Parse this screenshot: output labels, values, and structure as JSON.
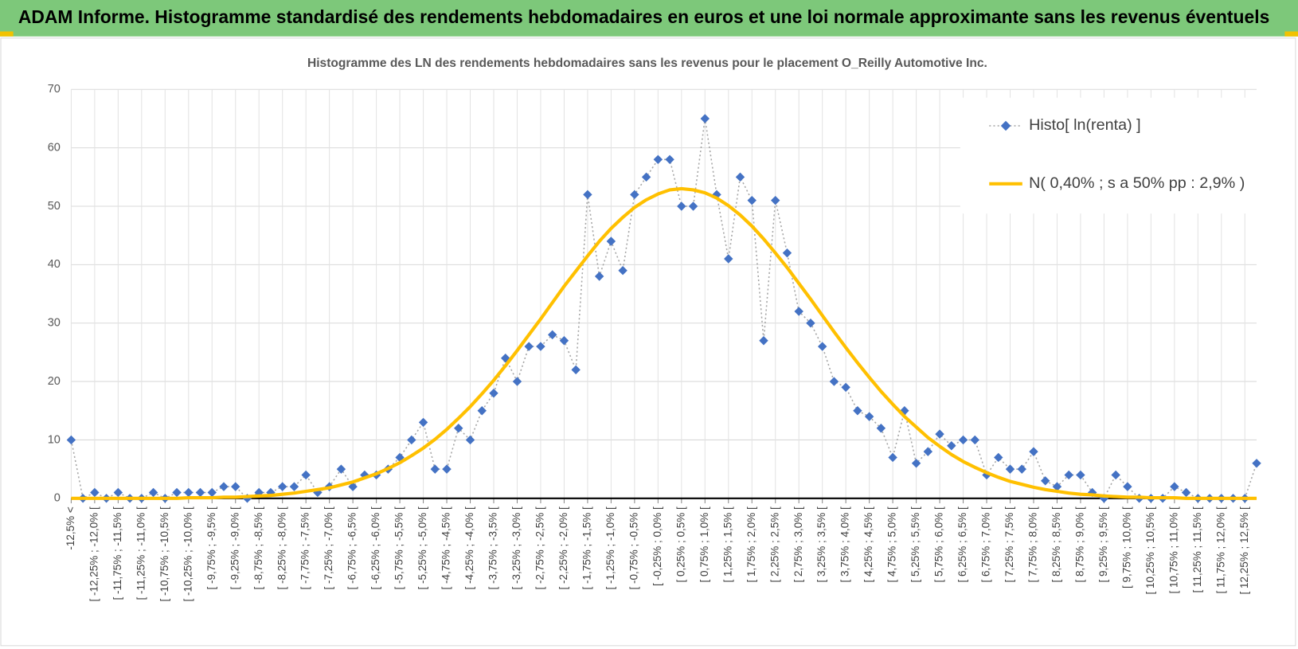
{
  "header": {
    "title": "ADAM Informe. Histogramme standardisé des rendements hebdomadaires en euros et une loi normale approximante sans les revenus éventuels"
  },
  "chart_data": {
    "type": "line",
    "title": "Histogramme  des LN des rendements  hebdomadaires sans les  revenus pour le placement O_Reilly  Automotive Inc.",
    "categories": [
      "-12,5% <",
      null,
      "[ -12,25% ; -12,0% [",
      null,
      "[ -11,75% ; -11,5% [",
      null,
      "[ -11,25% ; -11,0% [",
      null,
      "[ -10,75% ; -10,5% [",
      null,
      "[ -10,25% ; -10,0% [",
      null,
      "[ -9,75% ; -9,5% [",
      null,
      "[ -9,25% ; -9,0% [",
      null,
      "[ -8,75% ; -8,5% [",
      null,
      "[ -8,25% ; -8,0% [",
      null,
      "[ -7,75% ; -7,5% [",
      null,
      "[ -7,25% ; -7,0% [",
      null,
      "[ -6,75% ; -6,5% [",
      null,
      "[ -6,25% ; -6,0% [",
      null,
      "[ -5,75% ; -5,5% [",
      null,
      "[ -5,25% ; -5,0% [",
      null,
      "[ -4,75% ; -4,5% [",
      null,
      "[ -4,25% ; -4,0% [",
      null,
      "[ -3,75% ; -3,5% [",
      null,
      "[ -3,25% ; -3,0% [",
      null,
      "[ -2,75% ; -2,5% [",
      null,
      "[ -2,25% ; -2,0% [",
      null,
      "[ -1,75% ; -1,5% [",
      null,
      "[ -1,25% ; -1,0% [",
      null,
      "[ -0,75% ; -0,5% [",
      null,
      "[ -0,25% ; 0,0% [",
      null,
      "[ 0,25% ; 0,5% [",
      null,
      "[ 0,75% ; 1,0% [",
      null,
      "[ 1,25% ; 1,5% [",
      null,
      "[ 1,75% ; 2,0% [",
      null,
      "[ 2,25% ; 2,5% [",
      null,
      "[ 2,75% ; 3,0% [",
      null,
      "[ 3,25% ; 3,5% [",
      null,
      "[ 3,75% ; 4,0% [",
      null,
      "[ 4,25% ; 4,5% [",
      null,
      "[ 4,75% ; 5,0% [",
      null,
      "[ 5,25% ; 5,5% [",
      null,
      "[ 5,75% ; 6,0% [",
      null,
      "[ 6,25% ; 6,5% [",
      null,
      "[ 6,75% ; 7,0% [",
      null,
      "[ 7,25% ; 7,5% [",
      null,
      "[ 7,75% ; 8,0% [",
      null,
      "[ 8,25% ; 8,5% [",
      null,
      "[ 8,75% ; 9,0% [",
      null,
      "[ 9,25% ; 9,5% [",
      null,
      "[ 9,75% ; 10,0% [",
      null,
      "[ 10,25% ; 10,5% [",
      null,
      "[ 10,75% ; 11,0% [",
      null,
      "[ 11,25% ; 11,5% [",
      null,
      "[ 11,75% ; 12,0% [",
      null,
      "[ 12,25% ; 12,5% [",
      null
    ],
    "series": [
      {
        "name": "Histo[ ln(renta) ]",
        "color": "#4472c4",
        "values": [
          10,
          0,
          1,
          0,
          1,
          0,
          0,
          1,
          0,
          1,
          1,
          1,
          1,
          2,
          2,
          0,
          1,
          1,
          2,
          2,
          4,
          1,
          2,
          5,
          2,
          4,
          4,
          5,
          7,
          10,
          13,
          5,
          5,
          12,
          10,
          15,
          18,
          24,
          20,
          26,
          26,
          28,
          27,
          22,
          52,
          38,
          44,
          39,
          52,
          55,
          58,
          58,
          50,
          50,
          65,
          52,
          41,
          55,
          51,
          27,
          51,
          42,
          32,
          30,
          26,
          20,
          19,
          15,
          14,
          12,
          7,
          15,
          6,
          8,
          11,
          9,
          10,
          10,
          4,
          7,
          5,
          5,
          8,
          3,
          2,
          4,
          4,
          1,
          0,
          4,
          2,
          0,
          0,
          0,
          2,
          1,
          0,
          0,
          0,
          0,
          0,
          6
        ]
      },
      {
        "name": "N( 0,40% ; s a 50% pp : 2,9% )",
        "color": "#ffc000",
        "values": [
          0,
          0,
          0,
          0,
          0,
          0,
          0,
          0,
          0,
          0,
          0.1,
          0.1,
          0.1,
          0.2,
          0.2,
          0.3,
          0.4,
          0.5,
          0.7,
          0.9,
          1.2,
          1.5,
          1.8,
          2.3,
          2.8,
          3.5,
          4.2,
          5.1,
          6.1,
          7.3,
          8.6,
          10.1,
          11.8,
          13.7,
          15.7,
          17.9,
          20.2,
          22.7,
          25.3,
          28,
          30.7,
          33.5,
          36.3,
          38.9,
          41.5,
          44,
          46.2,
          48.1,
          49.8,
          51.1,
          52.1,
          52.8,
          53,
          52.8,
          52.3,
          51.4,
          50.1,
          48.5,
          46.6,
          44.4,
          42,
          39.5,
          36.8,
          34.1,
          31.3,
          28.5,
          25.8,
          23.2,
          20.7,
          18.3,
          16.1,
          14,
          12.2,
          10.4,
          8.9,
          7.5,
          6.3,
          5.3,
          4.4,
          3.6,
          2.9,
          2.4,
          1.9,
          1.5,
          1.2,
          0.9,
          0.7,
          0.6,
          0.4,
          0.3,
          0.2,
          0.2,
          0.1,
          0.1,
          0.1,
          0,
          0,
          0,
          0,
          0,
          0,
          0
        ]
      }
    ],
    "ylim": [
      0,
      70
    ],
    "yticks": [
      0,
      10,
      20,
      30,
      40,
      50,
      60,
      70
    ],
    "grid": true,
    "legend": "top-right"
  }
}
